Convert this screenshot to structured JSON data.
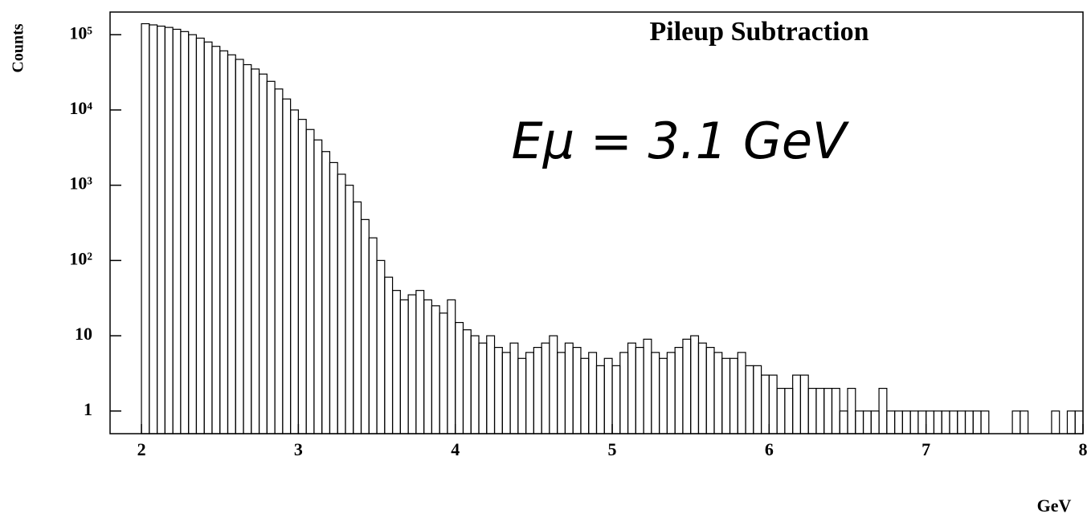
{
  "chart_data": {
    "type": "histogram",
    "title": "Pileup Subtraction",
    "ylabel": "Counts",
    "xlabel": "GeV",
    "annotation": "Eμ = 3.1 GeV",
    "color": "#000000",
    "log_y": true,
    "grid": false,
    "xlim": [
      1.8,
      8
    ],
    "xticks": [
      2,
      3,
      4,
      5,
      6,
      7,
      8
    ],
    "ylim": [
      0.5,
      200000
    ],
    "yticks": [
      1,
      10,
      {
        "value": 100,
        "label": "10²"
      },
      {
        "value": 1000,
        "label": "10³"
      },
      {
        "value": 10000,
        "label": "10⁴"
      },
      {
        "value": 100000,
        "label": "10⁵"
      }
    ],
    "bins": [
      2.0,
      2.05,
      2.1,
      2.15,
      2.2,
      2.25,
      2.3,
      2.35,
      2.4,
      2.45,
      2.5,
      2.55,
      2.6,
      2.65,
      2.7,
      2.75,
      2.8,
      2.85,
      2.9,
      2.95,
      3.0,
      3.05,
      3.1,
      3.15,
      3.2,
      3.25,
      3.3,
      3.35,
      3.4,
      3.45,
      3.5,
      3.55,
      3.6,
      3.65,
      3.7,
      3.75,
      3.8,
      3.85,
      3.9,
      3.95,
      4.0,
      4.05,
      4.1,
      4.15,
      4.2,
      4.25,
      4.3,
      4.35,
      4.4,
      4.45,
      4.5,
      4.55,
      4.6,
      4.65,
      4.7,
      4.75,
      4.8,
      4.85,
      4.9,
      4.95,
      5.0,
      5.05,
      5.1,
      5.15,
      5.2,
      5.25,
      5.3,
      5.35,
      5.4,
      5.45,
      5.5,
      5.55,
      5.6,
      5.65,
      5.7,
      5.75,
      5.8,
      5.85,
      5.9,
      5.95,
      6.0,
      6.05,
      6.1,
      6.15,
      6.2,
      6.25,
      6.3,
      6.35,
      6.4,
      6.45,
      6.5,
      6.55,
      6.6,
      6.65,
      6.7,
      6.75,
      6.8,
      6.85,
      6.9,
      6.95,
      7.0,
      7.05,
      7.1,
      7.15,
      7.2,
      7.25,
      7.3,
      7.35,
      7.4,
      7.45,
      7.5,
      7.55,
      7.6,
      7.65,
      7.7,
      7.75,
      7.8,
      7.85,
      7.9,
      7.95,
      8.0
    ],
    "values": [
      140000,
      135000,
      130000,
      125000,
      118000,
      110000,
      100000,
      90000,
      80000,
      70000,
      61000,
      54000,
      47000,
      40000,
      35000,
      30000,
      24000,
      19000,
      14000,
      10000,
      7500,
      5500,
      4000,
      2800,
      2000,
      1400,
      1000,
      600,
      350,
      200,
      100,
      60,
      40,
      30,
      35,
      40,
      30,
      25,
      20,
      30,
      15,
      12,
      10,
      8,
      10,
      7,
      6,
      8,
      5,
      6,
      7,
      8,
      10,
      6,
      8,
      7,
      5,
      6,
      4,
      5,
      4,
      6,
      8,
      7,
      9,
      6,
      5,
      6,
      7,
      9,
      10,
      8,
      7,
      6,
      5,
      5,
      6,
      4,
      4,
      3,
      3,
      2,
      2,
      3,
      3,
      2,
      2,
      2,
      2,
      1,
      2,
      1,
      1,
      1,
      2,
      1,
      1,
      1,
      1,
      1,
      1,
      1,
      1,
      1,
      1,
      1,
      1,
      1,
      0,
      0,
      0,
      1,
      1,
      0,
      0,
      0,
      1,
      0,
      1,
      1
    ]
  }
}
